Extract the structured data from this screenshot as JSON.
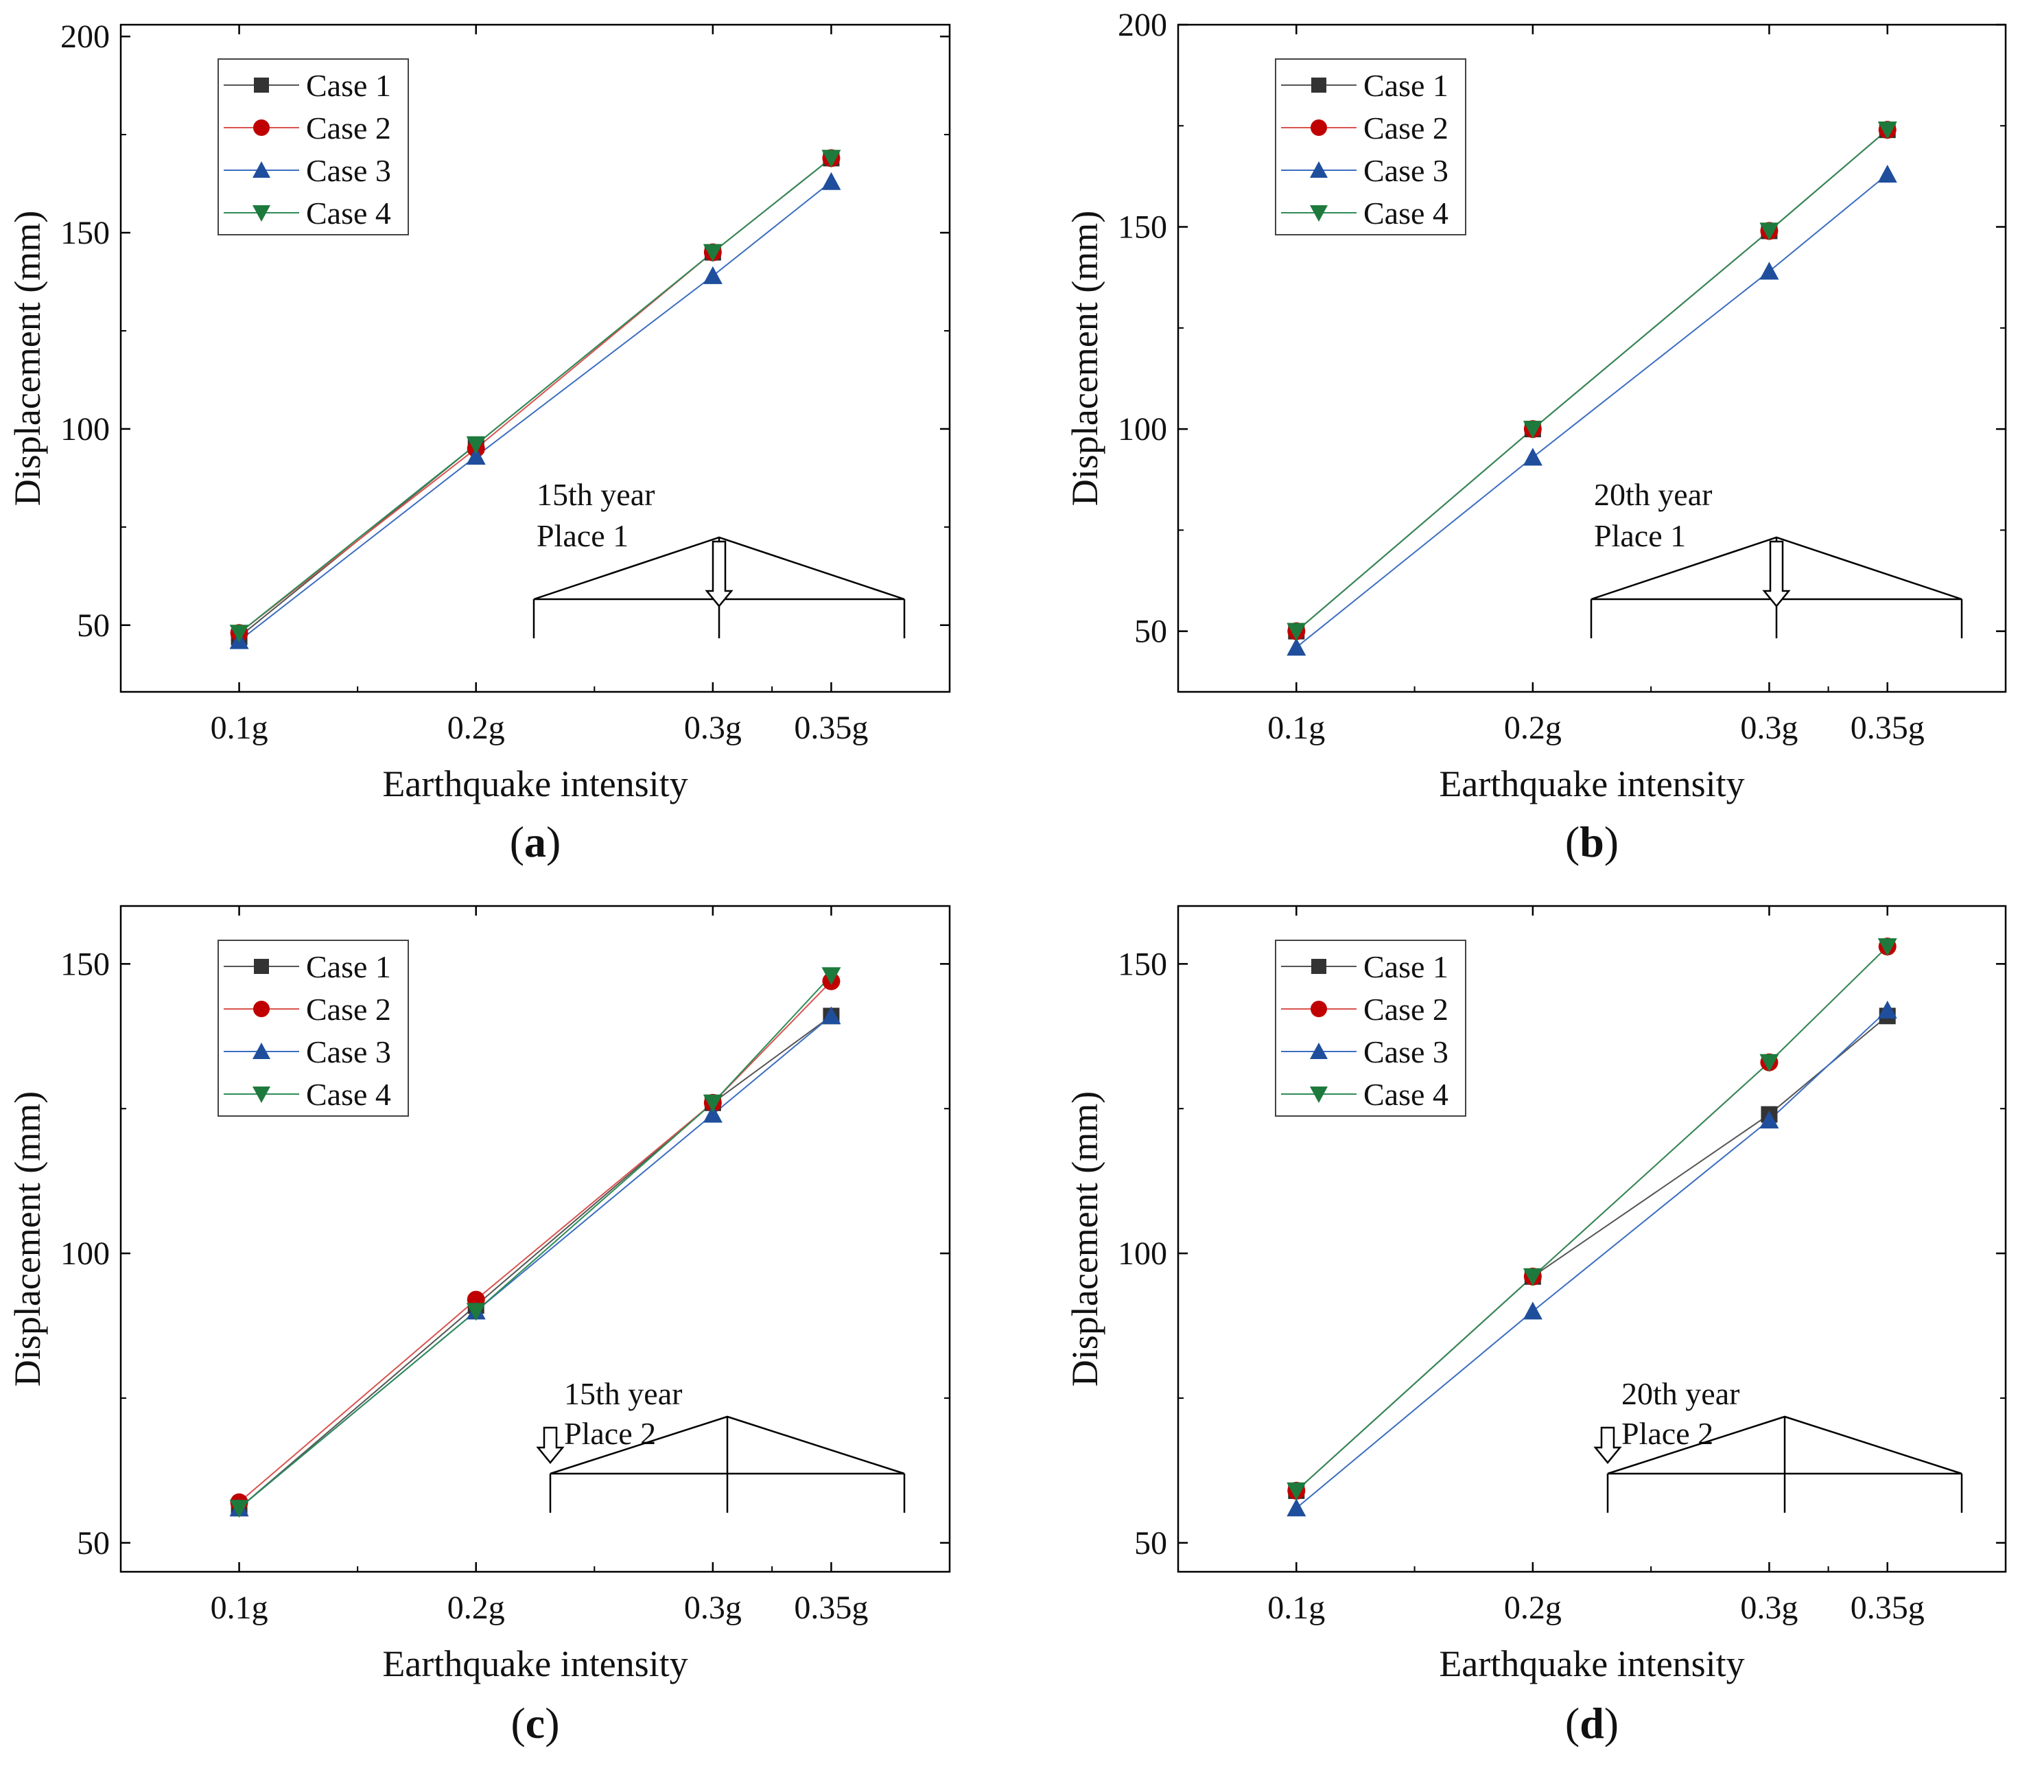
{
  "colors": {
    "case1": "#333333",
    "case2": "#c00000",
    "case3": "#1f4e9c",
    "case4": "#1e7a3c",
    "line1": "#555555",
    "line2": "#d9534f",
    "line3": "#3c6ec0",
    "line4": "#2e8b57"
  },
  "chart_data": [
    {
      "type": "line",
      "panel_label": "a",
      "title": "",
      "xlabel": "Earthquake intensity",
      "ylabel": "Displacement (mm)",
      "categories": [
        "0.1g",
        "0.2g",
        "0.3g",
        "0.35g"
      ],
      "x": [
        0.1,
        0.2,
        0.3,
        0.35
      ],
      "xlim": [
        0.05,
        0.4
      ],
      "ylim": [
        33,
        203
      ],
      "yticks": [
        50,
        100,
        150,
        200
      ],
      "legend_position": "top-left",
      "annotation": {
        "line1": "15th year",
        "line2": "Place 1",
        "arrow_at": "middle"
      },
      "series": [
        {
          "name": "Case 1",
          "marker": "square",
          "values": [
            47,
            96,
            145,
            169
          ]
        },
        {
          "name": "Case 2",
          "marker": "circle",
          "values": [
            48,
            95,
            145,
            169
          ]
        },
        {
          "name": "Case 3",
          "marker": "triangle-up",
          "values": [
            46,
            93,
            139,
            163
          ]
        },
        {
          "name": "Case 4",
          "marker": "triangle-down",
          "values": [
            48,
            96,
            145,
            169
          ]
        }
      ]
    },
    {
      "type": "line",
      "panel_label": "b",
      "title": "",
      "xlabel": "Earthquake intensity",
      "ylabel": "Displacement (mm)",
      "categories": [
        "0.1g",
        "0.2g",
        "0.3g",
        "0.35g"
      ],
      "x": [
        0.1,
        0.2,
        0.3,
        0.35
      ],
      "xlim": [
        0.05,
        0.4
      ],
      "ylim": [
        35,
        200
      ],
      "yticks": [
        50,
        100,
        150,
        200
      ],
      "legend_position": "top-left",
      "annotation": {
        "line1": "20th year",
        "line2": "Place 1",
        "arrow_at": "middle"
      },
      "series": [
        {
          "name": "Case 1",
          "marker": "square",
          "values": [
            50,
            100,
            149,
            174
          ]
        },
        {
          "name": "Case 2",
          "marker": "circle",
          "values": [
            50,
            100,
            149,
            174
          ]
        },
        {
          "name": "Case 3",
          "marker": "triangle-up",
          "values": [
            46,
            93,
            139,
            163
          ]
        },
        {
          "name": "Case 4",
          "marker": "triangle-down",
          "values": [
            50,
            100,
            149,
            174
          ]
        }
      ]
    },
    {
      "type": "line",
      "panel_label": "c",
      "title": "",
      "xlabel": "Earthquake intensity",
      "ylabel": "Displacement (mm)",
      "categories": [
        "0.1g",
        "0.2g",
        "0.3g",
        "0.35g"
      ],
      "x": [
        0.1,
        0.2,
        0.3,
        0.35
      ],
      "xlim": [
        0.05,
        0.4
      ],
      "ylim": [
        45,
        160
      ],
      "yticks": [
        50,
        100,
        150
      ],
      "legend_position": "top-left",
      "annotation": {
        "line1": "15th year",
        "line2": "Place 2",
        "arrow_at": "left"
      },
      "series": [
        {
          "name": "Case 1",
          "marker": "square",
          "values": [
            56,
            91,
            126,
            141
          ]
        },
        {
          "name": "Case 2",
          "marker": "circle",
          "values": [
            57,
            92,
            126,
            147
          ]
        },
        {
          "name": "Case 3",
          "marker": "triangle-up",
          "values": [
            56,
            90,
            124,
            141
          ]
        },
        {
          "name": "Case 4",
          "marker": "triangle-down",
          "values": [
            56,
            90,
            126,
            148
          ]
        }
      ]
    },
    {
      "type": "line",
      "panel_label": "d",
      "title": "",
      "xlabel": "Earthquake intensity",
      "ylabel": "Displacement (mm)",
      "categories": [
        "0.1g",
        "0.2g",
        "0.3g",
        "0.35g"
      ],
      "x": [
        0.1,
        0.2,
        0.3,
        0.35
      ],
      "xlim": [
        0.05,
        0.4
      ],
      "ylim": [
        45,
        160
      ],
      "yticks": [
        50,
        100,
        150
      ],
      "legend_position": "top-left",
      "annotation": {
        "line1": "20th year",
        "line2": "Place 2",
        "arrow_at": "left"
      },
      "series": [
        {
          "name": "Case 1",
          "marker": "square",
          "values": [
            59,
            96,
            124,
            141
          ]
        },
        {
          "name": "Case 2",
          "marker": "circle",
          "values": [
            59,
            96,
            133,
            153
          ]
        },
        {
          "name": "Case 3",
          "marker": "triangle-up",
          "values": [
            56,
            90,
            123,
            142
          ]
        },
        {
          "name": "Case 4",
          "marker": "triangle-down",
          "values": [
            59,
            96,
            133,
            153
          ]
        }
      ]
    }
  ]
}
